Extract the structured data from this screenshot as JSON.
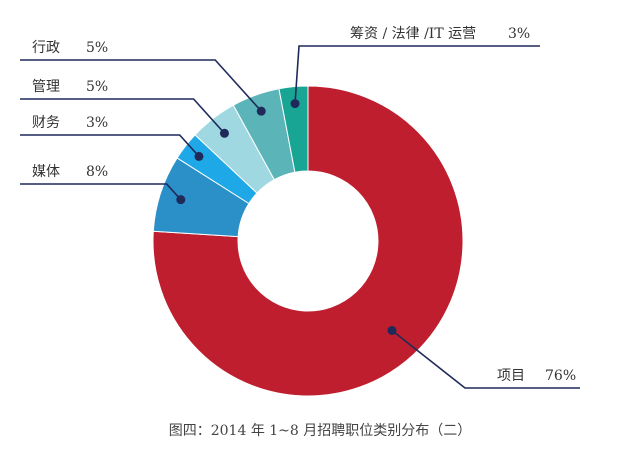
{
  "chart_data": {
    "type": "pie",
    "donut": true,
    "categories": [
      "项目",
      "媒体",
      "财务",
      "管理",
      "行政",
      "筹资 / 法律 /IT 运营"
    ],
    "values": [
      76,
      8,
      3,
      5,
      5,
      3
    ],
    "value_labels": [
      "76%",
      "8%",
      "3%",
      "5%",
      "5%",
      "3%"
    ],
    "colors": [
      "#be1e2d",
      "#2b8fc8",
      "#1fa8e8",
      "#9fd8e0",
      "#5bb4b8",
      "#19a594"
    ],
    "title": "",
    "caption": "图四：2014 年 1~8 月招聘职位类别分布（二）",
    "legend": "none"
  }
}
